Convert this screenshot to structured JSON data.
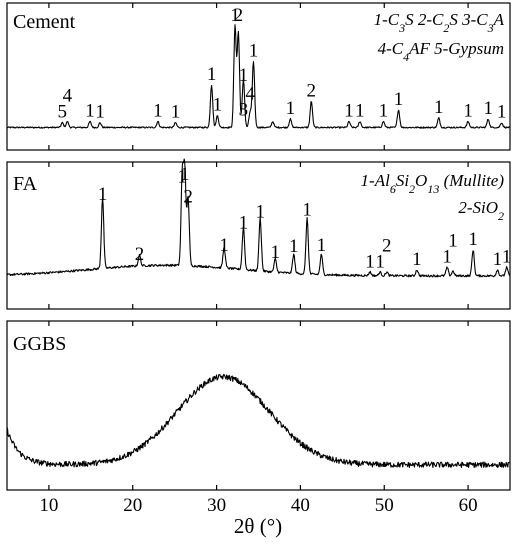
{
  "chart_data": {
    "type": "line",
    "xlabel": "2θ (°)",
    "xlim": [
      5,
      65
    ],
    "xticks": [
      10,
      20,
      30,
      40,
      50,
      60
    ],
    "xtick_labels": [
      "10",
      "20",
      "30",
      "40",
      "50",
      "60"
    ],
    "panels": [
      {
        "name": "Cement",
        "legend_lines": [
          [
            {
              "t": "1-C"
            },
            {
              "t": "3",
              "sub": true
            },
            {
              "t": "S  2-C"
            },
            {
              "t": "2",
              "sub": true
            },
            {
              "t": "S  3-C"
            },
            {
              "t": "3",
              "sub": true
            },
            {
              "t": "A"
            }
          ],
          [
            {
              "t": "4-C"
            },
            {
              "t": "4",
              "sub": true
            },
            {
              "t": "AF  5-Gypsum"
            }
          ]
        ],
        "baseline": 0.03,
        "peaks": [
          {
            "x": 11.6,
            "h": 0.04,
            "label": "5"
          },
          {
            "x": 12.2,
            "h": 0.05,
            "label": "4"
          },
          {
            "x": 14.9,
            "h": 0.05,
            "label": "1"
          },
          {
            "x": 16.1,
            "h": 0.04,
            "label": "1"
          },
          {
            "x": 23.0,
            "h": 0.05,
            "label": "1"
          },
          {
            "x": 25.1,
            "h": 0.04,
            "label": "1"
          },
          {
            "x": 29.4,
            "h": 0.36,
            "label": "1"
          },
          {
            "x": 30.1,
            "h": 0.1,
            "label": "1"
          },
          {
            "x": 32.2,
            "h": 0.86,
            "label": "1"
          },
          {
            "x": 32.6,
            "h": 0.8,
            "label": "2"
          },
          {
            "x": 33.2,
            "h": 0.35,
            "label": "1"
          },
          {
            "x": 33.2,
            "h": 0.06,
            "label": "3"
          },
          {
            "x": 34.0,
            "h": 0.13,
            "label": "4"
          },
          {
            "x": 34.4,
            "h": 0.56,
            "label": "1"
          },
          {
            "x": 36.7,
            "h": 0.05,
            "label": ""
          },
          {
            "x": 38.8,
            "h": 0.07,
            "label": "1"
          },
          {
            "x": 41.3,
            "h": 0.22,
            "label": "2"
          },
          {
            "x": 45.8,
            "h": 0.05,
            "label": "1"
          },
          {
            "x": 47.1,
            "h": 0.05,
            "label": "1"
          },
          {
            "x": 49.9,
            "h": 0.05,
            "label": "1"
          },
          {
            "x": 51.7,
            "h": 0.15,
            "label": "1"
          },
          {
            "x": 56.5,
            "h": 0.08,
            "label": "1"
          },
          {
            "x": 60.0,
            "h": 0.05,
            "label": "1"
          },
          {
            "x": 62.4,
            "h": 0.07,
            "label": "1"
          },
          {
            "x": 64.0,
            "h": 0.04,
            "label": "1"
          }
        ]
      },
      {
        "name": "FA",
        "legend_lines": [
          [
            {
              "t": "1-Al"
            },
            {
              "t": "6",
              "sub": true
            },
            {
              "t": "Si"
            },
            {
              "t": "2",
              "sub": true
            },
            {
              "t": "O"
            },
            {
              "t": "13",
              "sub": true
            },
            {
              "t": " (Mullite)"
            }
          ],
          [
            {
              "t": "2-SiO"
            },
            {
              "t": "2",
              "sub": true
            }
          ]
        ],
        "baseline": 0.12,
        "hump": {
          "center": 24,
          "width": 9,
          "height": 0.09
        },
        "peaks": [
          {
            "x": 16.4,
            "h": 0.6,
            "label": "1"
          },
          {
            "x": 20.8,
            "h": 0.09,
            "label": "2"
          },
          {
            "x": 25.9,
            "h": 0.75,
            "label": "1"
          },
          {
            "x": 26.2,
            "h": 0.8,
            "label": "1"
          },
          {
            "x": 26.6,
            "h": 0.58,
            "label": "2"
          },
          {
            "x": 30.9,
            "h": 0.17,
            "label": "1"
          },
          {
            "x": 33.2,
            "h": 0.36,
            "label": "1"
          },
          {
            "x": 35.2,
            "h": 0.45,
            "label": "1"
          },
          {
            "x": 37.0,
            "h": 0.11,
            "label": "1"
          },
          {
            "x": 39.2,
            "h": 0.16,
            "label": "1"
          },
          {
            "x": 40.8,
            "h": 0.47,
            "label": "1"
          },
          {
            "x": 42.5,
            "h": 0.17,
            "label": "1"
          },
          {
            "x": 48.3,
            "h": 0.03,
            "label": "1"
          },
          {
            "x": 49.5,
            "h": 0.03,
            "label": "1"
          },
          {
            "x": 50.3,
            "h": 0.03,
            "label": "2"
          },
          {
            "x": 53.9,
            "h": 0.05,
            "label": "1"
          },
          {
            "x": 57.5,
            "h": 0.07,
            "label": "1"
          },
          {
            "x": 58.2,
            "h": 0.04,
            "label": "1"
          },
          {
            "x": 60.6,
            "h": 0.22,
            "label": "1"
          },
          {
            "x": 63.5,
            "h": 0.05,
            "label": "1"
          },
          {
            "x": 64.6,
            "h": 0.07,
            "label": "1"
          }
        ]
      },
      {
        "name": "GGBS",
        "legend_lines": [],
        "baseline": 0.12,
        "hump": {
          "center": 30.8,
          "width": 5.5,
          "height": 0.55
        },
        "decay": {
          "start": 5,
          "height": 0.22,
          "rate": 0.7
        },
        "peaks": []
      }
    ]
  }
}
